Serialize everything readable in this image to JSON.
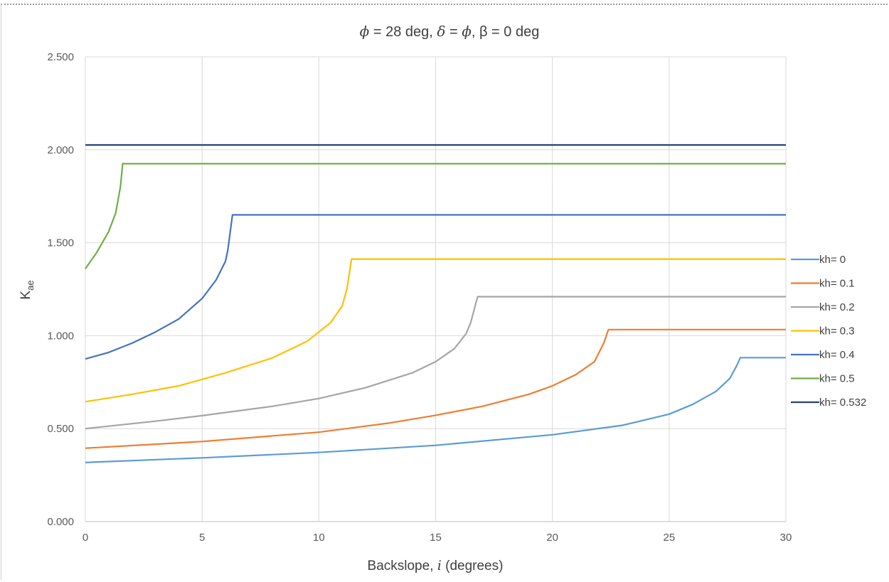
{
  "chart_data": {
    "type": "line",
    "title": {
      "phi_symbol": "ϕ",
      "part1": " = 28 deg, ",
      "delta_symbol": "δ",
      "part2": " = ",
      "phi_symbol2": "ϕ",
      "part3": ", β = 0 deg"
    },
    "xlabel": {
      "text": "Backslope, ",
      "italic": "i",
      "suffix": " (degrees)"
    },
    "ylabel": {
      "main": "K",
      "sub": "ae"
    },
    "xlim": [
      0,
      30
    ],
    "ylim": [
      0,
      2.5
    ],
    "x_ticks": [
      "0",
      "5",
      "10",
      "15",
      "20",
      "25",
      "30"
    ],
    "y_ticks": [
      "0.000",
      "0.500",
      "1.000",
      "1.500",
      "2.000",
      "2.500"
    ],
    "grid": true,
    "legend_position": "right",
    "series": [
      {
        "name": "kh= 0",
        "color": "#5b9bd5",
        "points": [
          [
            0,
            0.318
          ],
          [
            5,
            0.343
          ],
          [
            10,
            0.372
          ],
          [
            15,
            0.41
          ],
          [
            20,
            0.467
          ],
          [
            23,
            0.518
          ],
          [
            25,
            0.578
          ],
          [
            26,
            0.63
          ],
          [
            27,
            0.7
          ],
          [
            27.6,
            0.77
          ],
          [
            27.9,
            0.84
          ],
          [
            28.05,
            0.882
          ],
          [
            30,
            0.882
          ]
        ]
      },
      {
        "name": "kh= 0.1",
        "color": "#ed7d31",
        "points": [
          [
            0,
            0.395
          ],
          [
            5,
            0.431
          ],
          [
            10,
            0.481
          ],
          [
            13,
            0.53
          ],
          [
            15,
            0.572
          ],
          [
            17,
            0.62
          ],
          [
            19,
            0.685
          ],
          [
            20,
            0.73
          ],
          [
            21,
            0.79
          ],
          [
            21.8,
            0.86
          ],
          [
            22.2,
            0.96
          ],
          [
            22.4,
            1.033
          ],
          [
            30,
            1.033
          ]
        ]
      },
      {
        "name": "kh= 0.2",
        "color": "#a5a5a5",
        "points": [
          [
            0,
            0.5
          ],
          [
            3,
            0.54
          ],
          [
            5,
            0.57
          ],
          [
            8,
            0.62
          ],
          [
            10,
            0.662
          ],
          [
            12,
            0.72
          ],
          [
            14,
            0.8
          ],
          [
            15,
            0.86
          ],
          [
            15.8,
            0.93
          ],
          [
            16.3,
            1.01
          ],
          [
            16.5,
            1.07
          ],
          [
            16.8,
            1.21
          ],
          [
            30,
            1.21
          ]
        ]
      },
      {
        "name": "kh= 0.3",
        "color": "#ffc000",
        "points": [
          [
            0,
            0.645
          ],
          [
            2,
            0.685
          ],
          [
            4,
            0.73
          ],
          [
            6,
            0.8
          ],
          [
            8,
            0.88
          ],
          [
            9.5,
            0.97
          ],
          [
            10.5,
            1.07
          ],
          [
            11.0,
            1.16
          ],
          [
            11.2,
            1.25
          ],
          [
            11.4,
            1.412
          ],
          [
            30,
            1.412
          ]
        ]
      },
      {
        "name": "kh= 0.4",
        "color": "#4472c4",
        "points": [
          [
            0,
            0.875
          ],
          [
            1,
            0.91
          ],
          [
            2,
            0.96
          ],
          [
            3,
            1.02
          ],
          [
            4,
            1.09
          ],
          [
            5,
            1.2
          ],
          [
            5.6,
            1.3
          ],
          [
            6.0,
            1.4
          ],
          [
            6.1,
            1.46
          ],
          [
            6.3,
            1.65
          ],
          [
            30,
            1.65
          ]
        ]
      },
      {
        "name": "kh= 0.5",
        "color": "#70ad47",
        "points": [
          [
            0,
            1.36
          ],
          [
            0.5,
            1.45
          ],
          [
            1.0,
            1.56
          ],
          [
            1.3,
            1.66
          ],
          [
            1.5,
            1.8
          ],
          [
            1.6,
            1.925
          ],
          [
            30,
            1.925
          ]
        ]
      },
      {
        "name": "kh= 0.532",
        "color": "#264478",
        "points": [
          [
            0,
            2.026
          ],
          [
            30,
            2.026
          ]
        ]
      }
    ]
  }
}
